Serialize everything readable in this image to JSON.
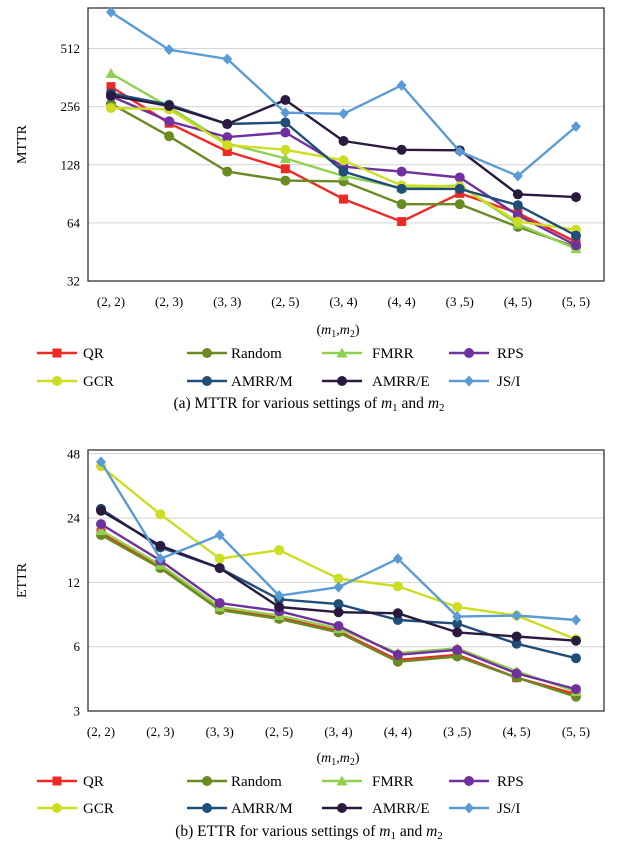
{
  "chart_data": [
    {
      "type": "line",
      "ylabel": "MTTR",
      "xlabel": "(m1,m2)",
      "caption": "(a) MTTR for various settings of m1 and m2",
      "caption_parts": [
        "(a) MTTR for various settings of ",
        "m",
        "1",
        " and ",
        "m",
        "2"
      ],
      "y_scale": "log2",
      "ylim": [
        32,
        830
      ],
      "yticks": [
        32,
        64,
        128,
        256,
        512
      ],
      "ytick_labels": [
        "32",
        "64",
        "128",
        "256",
        "512"
      ],
      "categories": [
        "(2, 2)",
        "(2, 3)",
        "(3, 3)",
        "(2, 5)",
        "(3, 4)",
        "(4, 4)",
        "(3 ,5)",
        "(4, 5)",
        "(5, 5)"
      ],
      "series": [
        {
          "name": "QR",
          "color": "#ee2a24",
          "marker": "square",
          "values": [
            325,
            210,
            150,
            122,
            85,
            65,
            91,
            72,
            51
          ]
        },
        {
          "name": "Random",
          "color": "#6a8a22",
          "marker": "circle",
          "values": [
            265,
            180,
            118,
            106,
            105,
            80,
            80,
            61,
            48
          ]
        },
        {
          "name": "FMRR",
          "color": "#8fd14f",
          "marker": "triangle",
          "values": [
            380,
            255,
            165,
            138,
            112,
            97,
            100,
            63,
            47
          ]
        },
        {
          "name": "RPS",
          "color": "#7030a0",
          "marker": "circle",
          "values": [
            290,
            215,
            178,
            188,
            125,
            118,
            110,
            70,
            49
          ]
        },
        {
          "name": "GCR",
          "color": "#ccdd22",
          "marker": "circle",
          "values": [
            252,
            248,
            162,
            153,
            135,
            100,
            99,
            65,
            59
          ]
        },
        {
          "name": "AMRR/M",
          "color": "#1f4e79",
          "marker": "circle",
          "values": [
            300,
            262,
            208,
            212,
            118,
            96,
            96,
            79,
            55
          ]
        },
        {
          "name": "AMRR/E",
          "color": "#2a1a40",
          "marker": "circle",
          "values": [
            292,
            258,
            208,
            277,
            170,
            153,
            152,
            90,
            87
          ]
        },
        {
          "name": "JS/I",
          "color": "#5b9bd5",
          "marker": "diamond",
          "values": [
            790,
            505,
            452,
            238,
            235,
            330,
            150,
            112,
            202
          ]
        }
      ]
    },
    {
      "type": "line",
      "ylabel": "ETTR",
      "xlabel": "(m1,m2)",
      "caption": "(b) ETTR for various settings of m1 and m2",
      "caption_parts": [
        "(b) ETTR for various settings of ",
        "m",
        "1",
        " and ",
        "m",
        "2"
      ],
      "y_scale": "log2",
      "ylim": [
        3,
        50
      ],
      "yticks": [
        3,
        6,
        12,
        24,
        48
      ],
      "ytick_labels": [
        "3",
        "6",
        "12",
        "24",
        "48"
      ],
      "categories": [
        "(2, 2)",
        "(2, 3)",
        "(3, 3)",
        "(2, 5)",
        "(3, 4)",
        "(4, 4)",
        "(3 ,5)",
        "(4, 5)",
        "(5, 5)"
      ],
      "series": [
        {
          "name": "QR",
          "color": "#ee2a24",
          "marker": "square",
          "values": [
            20.5,
            14.2,
            9.0,
            8.2,
            7.1,
            5.2,
            5.5,
            4.3,
            3.6
          ]
        },
        {
          "name": "Random",
          "color": "#6a8a22",
          "marker": "circle",
          "values": [
            20.0,
            14.0,
            8.9,
            8.1,
            7.0,
            5.1,
            5.4,
            4.3,
            3.5
          ]
        },
        {
          "name": "FMRR",
          "color": "#8fd14f",
          "marker": "triangle",
          "values": [
            21.0,
            14.5,
            9.2,
            8.4,
            7.3,
            5.6,
            5.9,
            4.6,
            3.7
          ]
        },
        {
          "name": "RPS",
          "color": "#7030a0",
          "marker": "circle",
          "values": [
            22.5,
            15.2,
            9.6,
            8.8,
            7.5,
            5.5,
            5.8,
            4.5,
            3.8
          ]
        },
        {
          "name": "GCR",
          "color": "#ccdd22",
          "marker": "circle",
          "values": [
            42.0,
            25.0,
            15.5,
            17.0,
            12.5,
            11.5,
            9.2,
            8.4,
            6.5
          ]
        },
        {
          "name": "AMRR/M",
          "color": "#1f4e79",
          "marker": "circle",
          "values": [
            26.5,
            17.5,
            14.0,
            10.0,
            9.5,
            8.0,
            7.7,
            6.2,
            5.3
          ]
        },
        {
          "name": "AMRR/E",
          "color": "#2a1a40",
          "marker": "circle",
          "values": [
            26.0,
            17.8,
            14.0,
            9.2,
            8.7,
            8.6,
            7.0,
            6.7,
            6.4
          ]
        },
        {
          "name": "JS/I",
          "color": "#5b9bd5",
          "marker": "diamond",
          "values": [
            44.0,
            15.5,
            20.0,
            10.4,
            11.4,
            15.5,
            8.3,
            8.4,
            8.0
          ]
        }
      ]
    }
  ]
}
